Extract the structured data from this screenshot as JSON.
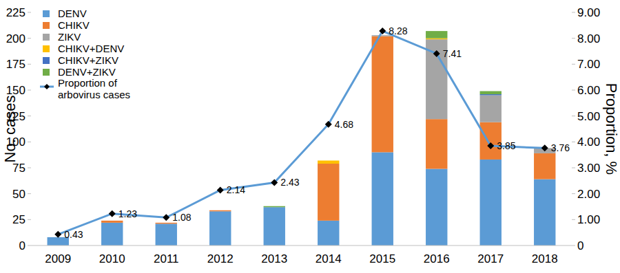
{
  "chart_data": {
    "type": "bar",
    "stacked": true,
    "legend": "top-left",
    "categories": [
      "2009",
      "2010",
      "2011",
      "2012",
      "2013",
      "2014",
      "2015",
      "2016",
      "2017",
      "2018"
    ],
    "y_label": "No. cases",
    "y2_label": "Proportion, %",
    "ylim": [
      0,
      225
    ],
    "yticks": [
      0,
      25,
      50,
      75,
      100,
      125,
      150,
      175,
      200,
      225
    ],
    "y2lim": [
      0,
      9
    ],
    "y2ticks": [
      0,
      {
        "value": 1,
        "label": "1.00"
      },
      {
        "value": 2,
        "label": "2.00"
      },
      {
        "value": 3,
        "label": "3.00"
      },
      {
        "value": 4,
        "label": "4.00"
      },
      {
        "value": 5,
        "label": "5.00"
      },
      {
        "value": 6,
        "label": "6.00"
      },
      {
        "value": 7,
        "label": "7.00"
      },
      {
        "value": 8,
        "label": "8.00"
      },
      {
        "value": 9,
        "label": "9.00"
      }
    ],
    "series": [
      {
        "name": "DENV",
        "color": "#5b9bd5",
        "values": [
          8,
          22,
          21,
          33,
          37,
          24,
          90,
          74,
          83,
          64
        ]
      },
      {
        "name": "CHIKV",
        "color": "#ed7d31",
        "values": [
          0,
          2,
          1,
          1,
          0,
          55,
          112,
          48,
          36,
          25
        ]
      },
      {
        "name": "ZIKV",
        "color": "#a5a5a5",
        "values": [
          0,
          0,
          0,
          0,
          0,
          0,
          1,
          77,
          26,
          5
        ]
      },
      {
        "name": "CHIKV+DENV",
        "color": "#ffc000",
        "values": [
          0,
          0,
          0,
          0,
          0,
          3,
          0,
          1,
          0,
          0
        ]
      },
      {
        "name": "CHIKV+ZIKV",
        "color": "#4472c4",
        "values": [
          0,
          0,
          0,
          0,
          0,
          0,
          0,
          0,
          1,
          0
        ]
      },
      {
        "name": "DENV+ZIKV",
        "color": "#70ad47",
        "values": [
          0,
          0,
          0,
          0,
          1,
          0,
          0,
          7,
          3,
          0
        ]
      },
      {
        "name": "Proportion of arbovirus cases",
        "type": "line",
        "axis": "y2",
        "color": "#5b9bd5",
        "marker": "diamond",
        "data_labels": true,
        "values": [
          0.43,
          1.23,
          1.08,
          2.14,
          2.43,
          4.68,
          8.28,
          7.41,
          3.85,
          3.76
        ]
      }
    ]
  }
}
